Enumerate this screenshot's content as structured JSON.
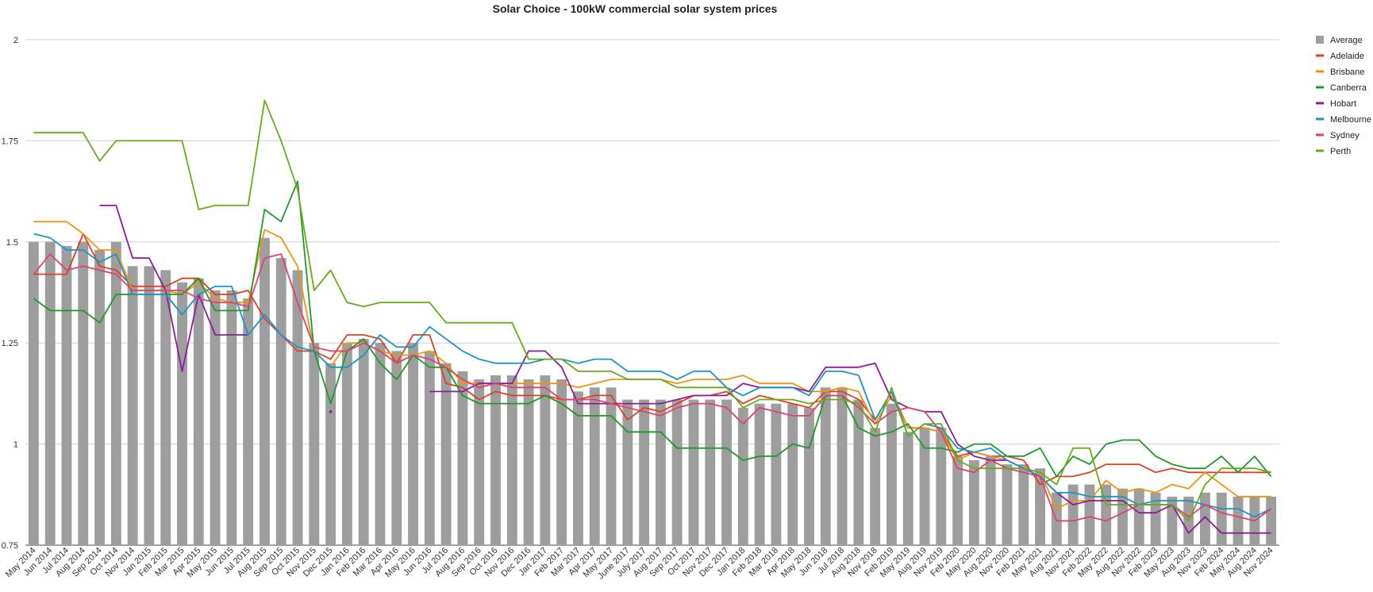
{
  "chart_data": {
    "type": "bar",
    "title": "Solar Choice - 100kW commercial solar system prices",
    "xlabel": "",
    "ylabel": "",
    "ylim": [
      0.75,
      2
    ],
    "yticks": [
      "0.75",
      "1",
      "1.25",
      "1.5",
      "1.75",
      "2"
    ],
    "grid": true,
    "legend_position": "right",
    "categories": [
      "May 2014",
      "Jun 2014",
      "Jul 2014",
      "Aug 2014",
      "Sep 2014",
      "Oct 2014",
      "Nov 2014",
      "Jan 2015",
      "Feb 2015",
      "Mar 2015",
      "Apr 2015",
      "May 2015",
      "Jun 2015",
      "Jul 2015",
      "Aug 2015",
      "Sep 2015",
      "Oct 2015",
      "Nov 2015",
      "Dec 2015",
      "Jan 2016",
      "Feb 2016",
      "Mar 2016",
      "Apr 2016",
      "May 2016",
      "Jun 2016",
      "Jul 2016",
      "Aug 2016",
      "Sep 2016",
      "Oct 2016",
      "Nov 2016",
      "Dec 2016",
      "Jan 2017",
      "Feb 2017",
      "Mar 2017",
      "Apr 2017",
      "May 2017",
      "June 2017",
      "July 2017",
      "Aug 2017",
      "Sep 2017",
      "Oct 2017",
      "Nov 2017",
      "Dec 2017",
      "Jan 2018",
      "Feb 2018",
      "Mar 2018",
      "Apr 2018",
      "May 2018",
      "Jun 2018",
      "Jul 2018",
      "Aug 2018",
      "Nov 2018",
      "Feb 2019",
      "May 2019",
      "Aug 2019",
      "Nov 2019",
      "Feb 2020",
      "May 2020",
      "Aug 2020",
      "Nov 2020",
      "Feb 2021",
      "May 2021",
      "Aug 2021",
      "Nov 2021",
      "Feb 2022",
      "May 2022",
      "Aug 2022",
      "Nov 2022",
      "Feb 2023",
      "May 2023",
      "Aug 2023",
      "Nov 2023",
      "Feb 2024",
      "May 2024",
      "Aug 2024",
      "Nov 2024"
    ],
    "series": [
      {
        "name": "Average",
        "type": "bar",
        "color": "#9e9e9e",
        "values": [
          1.5,
          1.5,
          1.49,
          1.5,
          1.48,
          1.5,
          1.44,
          1.44,
          1.43,
          1.4,
          1.41,
          1.38,
          1.38,
          1.36,
          1.51,
          1.46,
          1.43,
          1.25,
          1.2,
          1.25,
          1.26,
          1.25,
          1.23,
          1.25,
          1.23,
          1.2,
          1.18,
          1.16,
          1.17,
          1.17,
          1.16,
          1.17,
          1.16,
          1.13,
          1.14,
          1.14,
          1.11,
          1.11,
          1.11,
          1.11,
          1.11,
          1.11,
          1.11,
          1.09,
          1.1,
          1.1,
          1.1,
          1.09,
          1.14,
          1.14,
          1.11,
          1.04,
          1.1,
          1.03,
          1.04,
          1.04,
          0.97,
          0.96,
          0.97,
          0.95,
          0.95,
          0.94,
          0.88,
          0.9,
          0.9,
          0.9,
          0.89,
          0.89,
          0.88,
          0.87,
          0.87,
          0.88,
          0.88,
          0.87,
          0.87,
          0.87
        ]
      },
      {
        "name": "Adelaide",
        "type": "line",
        "color": "#e0401f",
        "values": [
          1.42,
          1.42,
          1.42,
          1.52,
          1.44,
          1.43,
          1.39,
          1.39,
          1.39,
          1.41,
          1.41,
          1.37,
          1.37,
          1.38,
          1.31,
          1.27,
          1.23,
          1.23,
          1.21,
          1.27,
          1.27,
          1.26,
          1.2,
          1.27,
          1.27,
          1.15,
          1.14,
          1.11,
          1.13,
          1.12,
          1.12,
          1.12,
          1.11,
          1.11,
          1.12,
          1.12,
          1.06,
          1.09,
          1.08,
          1.1,
          1.12,
          1.12,
          1.13,
          1.1,
          1.12,
          1.11,
          1.1,
          1.09,
          1.13,
          1.13,
          1.11,
          1.06,
          1.13,
          1.04,
          1.04,
          1.03,
          0.97,
          0.98,
          0.97,
          0.97,
          0.96,
          0.9,
          0.92,
          0.92,
          0.93,
          0.95,
          0.95,
          0.95,
          0.93,
          0.94,
          0.93,
          0.93,
          0.93,
          0.93,
          0.93,
          0.93
        ]
      },
      {
        "name": "Brisbane",
        "type": "line",
        "color": "#f0940f",
        "values": [
          1.55,
          1.55,
          1.55,
          1.52,
          1.48,
          1.48,
          1.38,
          1.38,
          1.38,
          1.37,
          1.4,
          1.36,
          1.35,
          1.35,
          1.53,
          1.51,
          1.44,
          1.23,
          1.19,
          1.25,
          1.25,
          1.23,
          1.22,
          1.22,
          1.23,
          1.2,
          1.15,
          1.15,
          1.15,
          1.15,
          1.15,
          1.15,
          1.15,
          1.14,
          1.15,
          1.16,
          1.16,
          1.16,
          1.16,
          1.15,
          1.16,
          1.16,
          1.16,
          1.17,
          1.15,
          1.15,
          1.15,
          1.13,
          1.13,
          1.14,
          1.13,
          1.05,
          1.12,
          1.04,
          1.04,
          1.03,
          0.96,
          0.98,
          0.97,
          0.96,
          0.94,
          0.93,
          0.84,
          0.86,
          0.86,
          0.91,
          0.88,
          0.89,
          0.88,
          0.9,
          0.89,
          0.93,
          0.9,
          0.87,
          0.87,
          0.87
        ]
      },
      {
        "name": "Canberra",
        "type": "line",
        "color": "#1e9a2a",
        "values": [
          1.36,
          1.33,
          1.33,
          1.33,
          1.3,
          1.37,
          1.37,
          1.37,
          1.37,
          1.37,
          1.41,
          1.33,
          1.33,
          1.33,
          1.58,
          1.55,
          1.65,
          1.23,
          1.1,
          1.23,
          1.26,
          1.2,
          1.16,
          1.22,
          1.19,
          1.19,
          1.12,
          1.1,
          1.1,
          1.1,
          1.1,
          1.12,
          1.1,
          1.07,
          1.07,
          1.07,
          1.03,
          1.03,
          1.03,
          0.99,
          0.99,
          0.99,
          0.99,
          0.96,
          0.97,
          0.97,
          1.0,
          0.99,
          1.12,
          1.12,
          1.04,
          1.02,
          1.03,
          1.05,
          0.99,
          0.99,
          0.98,
          1.0,
          1.0,
          0.97,
          0.97,
          0.99,
          0.92,
          0.97,
          0.95,
          1.0,
          1.01,
          1.01,
          0.97,
          0.95,
          0.94,
          0.94,
          0.97,
          0.93,
          0.97,
          0.92
        ]
      },
      {
        "name": "Hobart",
        "type": "line",
        "color": "#8e1c9c",
        "values": [
          null,
          null,
          null,
          null,
          1.59,
          1.59,
          1.46,
          1.46,
          1.38,
          1.18,
          1.37,
          1.27,
          1.27,
          1.27,
          null,
          null,
          null,
          null,
          1.08,
          null,
          null,
          null,
          null,
          null,
          1.13,
          1.13,
          1.13,
          1.15,
          1.15,
          1.15,
          1.23,
          1.23,
          1.19,
          1.1,
          1.1,
          1.1,
          1.1,
          1.1,
          1.1,
          1.11,
          1.12,
          1.12,
          1.12,
          1.15,
          1.14,
          1.14,
          1.14,
          1.13,
          1.19,
          1.19,
          1.19,
          1.2,
          1.11,
          1.09,
          1.08,
          1.08,
          1.0,
          0.97,
          0.96,
          0.96,
          0.94,
          0.92,
          0.88,
          0.85,
          0.86,
          0.86,
          0.86,
          0.83,
          0.83,
          0.85,
          0.78,
          0.82,
          0.78,
          0.78,
          0.78,
          0.78
        ]
      },
      {
        "name": "Melbourne",
        "type": "line",
        "color": "#1b95c8",
        "values": [
          1.52,
          1.51,
          1.48,
          1.48,
          1.45,
          1.47,
          1.37,
          1.37,
          1.37,
          1.32,
          1.37,
          1.39,
          1.39,
          1.27,
          1.32,
          1.27,
          1.24,
          1.23,
          1.19,
          1.19,
          1.22,
          1.27,
          1.24,
          1.24,
          1.29,
          1.26,
          1.23,
          1.21,
          1.2,
          1.2,
          1.2,
          1.21,
          1.21,
          1.2,
          1.21,
          1.21,
          1.18,
          1.18,
          1.18,
          1.16,
          1.18,
          1.18,
          1.14,
          1.12,
          1.14,
          1.14,
          1.14,
          1.12,
          1.18,
          1.18,
          1.17,
          1.06,
          1.13,
          1.02,
          1.05,
          1.04,
          0.99,
          0.98,
          0.99,
          0.96,
          0.94,
          0.92,
          0.88,
          0.88,
          0.87,
          0.87,
          0.87,
          0.85,
          0.86,
          0.86,
          0.86,
          0.85,
          0.84,
          0.84,
          0.82,
          0.84
        ]
      },
      {
        "name": "Sydney",
        "type": "line",
        "color": "#e2406e",
        "values": [
          1.42,
          1.47,
          1.43,
          1.44,
          1.43,
          1.42,
          1.38,
          1.38,
          1.38,
          1.38,
          1.36,
          1.35,
          1.35,
          1.34,
          1.46,
          1.47,
          1.35,
          1.24,
          1.23,
          1.23,
          1.25,
          1.23,
          1.2,
          1.22,
          1.21,
          1.19,
          1.16,
          1.14,
          1.15,
          1.14,
          1.14,
          1.14,
          1.11,
          1.11,
          1.11,
          1.1,
          1.09,
          1.08,
          1.07,
          1.09,
          1.1,
          1.1,
          1.09,
          1.05,
          1.09,
          1.08,
          1.07,
          1.07,
          1.12,
          1.12,
          1.09,
          1.05,
          1.08,
          1.09,
          1.08,
          1.03,
          0.94,
          0.93,
          0.96,
          0.94,
          0.93,
          0.92,
          0.81,
          0.81,
          0.82,
          0.81,
          0.83,
          0.85,
          0.85,
          0.85,
          0.82,
          0.85,
          0.83,
          0.82,
          0.81,
          0.84
        ]
      },
      {
        "name": "Perth",
        "type": "line",
        "color": "#6aab1a",
        "values": [
          1.77,
          1.77,
          1.77,
          1.77,
          1.7,
          1.75,
          1.75,
          1.75,
          1.75,
          1.75,
          1.58,
          1.59,
          1.59,
          1.59,
          1.85,
          1.75,
          1.63,
          1.38,
          1.43,
          1.35,
          1.34,
          1.35,
          1.35,
          1.35,
          1.35,
          1.3,
          1.3,
          1.3,
          1.3,
          1.3,
          1.21,
          1.21,
          1.21,
          1.18,
          1.18,
          1.18,
          1.16,
          1.16,
          1.16,
          1.14,
          1.14,
          1.14,
          1.14,
          1.09,
          1.11,
          1.11,
          1.11,
          1.1,
          1.11,
          1.11,
          1.1,
          1.03,
          1.14,
          1.02,
          1.05,
          1.05,
          0.96,
          0.94,
          0.94,
          0.94,
          0.94,
          0.93,
          0.9,
          0.99,
          0.99,
          0.85,
          0.85,
          0.85,
          0.85,
          0.85,
          0.81,
          0.9,
          0.94,
          0.94,
          0.94,
          0.93
        ]
      }
    ]
  }
}
